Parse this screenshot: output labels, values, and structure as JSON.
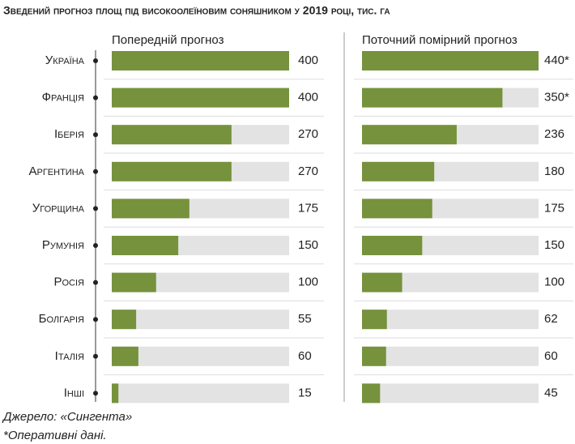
{
  "title": "Зведений прогноз площ під високоолеїновим соняшником у 2019 році, тис. га",
  "source": "Джерело: «Сингента»",
  "note": "*Оперативні дані.",
  "chart_data": [
    {
      "type": "bar",
      "orientation": "horizontal",
      "title": "Попередній прогноз",
      "color": "#76923c",
      "track_color": "#e3e3e3",
      "categories": [
        "Україна",
        "Франція",
        "Іберія",
        "Аргентина",
        "Угорщина",
        "Румунія",
        "Росія",
        "Болгарія",
        "Італія",
        "Інші"
      ],
      "values": [
        400,
        400,
        270,
        270,
        175,
        150,
        100,
        55,
        60,
        15
      ],
      "xlim": [
        0,
        400
      ]
    },
    {
      "type": "bar",
      "orientation": "horizontal",
      "title": "Поточний помірний прогноз",
      "color": "#76923c",
      "track_color": "#e3e3e3",
      "values": [
        440,
        350,
        236,
        180,
        175,
        150,
        100,
        62,
        60,
        45
      ],
      "value_labels": [
        "440*",
        "350*",
        "236",
        "180",
        "175",
        "150",
        "100",
        "62",
        "60",
        "45"
      ],
      "xlim": [
        0,
        440
      ]
    }
  ]
}
